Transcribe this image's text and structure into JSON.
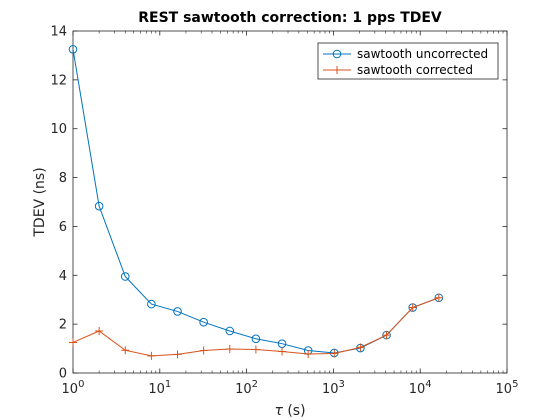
{
  "chart_data": {
    "type": "line",
    "title": "REST sawtooth correction: 1 pps TDEV",
    "xlabel_symbol": "τ",
    "xlabel_unit": " (s)",
    "ylabel": "TDEV (ns)",
    "xscale": "log",
    "xlim": [
      1,
      100000
    ],
    "ylim": [
      0,
      14
    ],
    "x_ticks": [
      {
        "base": "10",
        "exp": "0"
      },
      {
        "base": "10",
        "exp": "1"
      },
      {
        "base": "10",
        "exp": "2"
      },
      {
        "base": "10",
        "exp": "3"
      },
      {
        "base": "10",
        "exp": "4"
      },
      {
        "base": "10",
        "exp": "5"
      }
    ],
    "y_ticks": [
      "0",
      "2",
      "4",
      "6",
      "8",
      "10",
      "12",
      "14"
    ],
    "grid": false,
    "legend_position": "top-right",
    "x": [
      1,
      2,
      4,
      8,
      16,
      32,
      64,
      128,
      256,
      512,
      1024,
      2048,
      4096,
      8192,
      16384
    ],
    "series": [
      {
        "name": "sawtooth uncorrected",
        "color": "#0072BD",
        "marker": "circle",
        "values": [
          13.25,
          6.83,
          3.95,
          2.82,
          2.52,
          2.08,
          1.72,
          1.4,
          1.2,
          0.92,
          0.82,
          1.02,
          1.55,
          2.68,
          3.08
        ]
      },
      {
        "name": "sawtooth corrected",
        "color": "#D95319",
        "marker": "plus",
        "values": [
          1.25,
          1.72,
          0.93,
          0.7,
          0.76,
          0.92,
          0.98,
          0.96,
          0.88,
          0.78,
          0.8,
          1.05,
          1.55,
          2.68,
          3.08
        ]
      }
    ]
  }
}
